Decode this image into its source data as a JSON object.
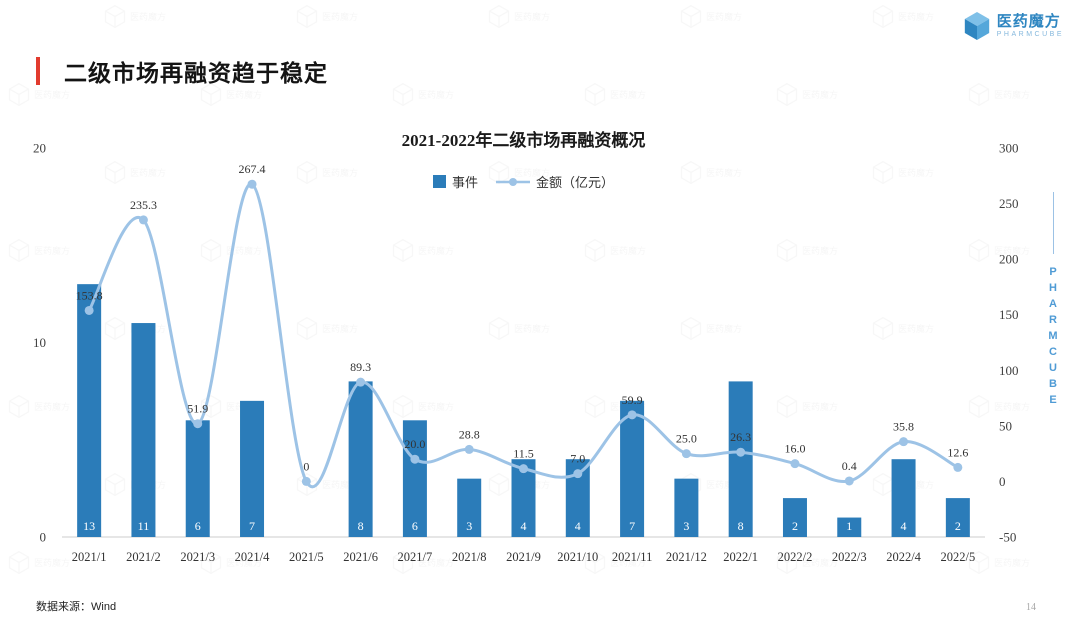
{
  "page": {
    "title": "二级市场再融资趋于稳定",
    "source_note": "数据来源：Wind",
    "page_number": "14",
    "side_label": "PHARMCUBE"
  },
  "logo": {
    "name": "医药魔方",
    "subtitle": "PHARMCUBE"
  },
  "chart_data": {
    "type": "combo (bar + smooth line, dual axis)",
    "title": "2021-2022年二级市场再融资概况",
    "categories": [
      "2021/1",
      "2021/2",
      "2021/3",
      "2021/4",
      "2021/5",
      "2021/6",
      "2021/7",
      "2021/8",
      "2021/9",
      "2021/10",
      "2021/11",
      "2021/12",
      "2022/1",
      "2022/2",
      "2022/3",
      "2022/4",
      "2022/5"
    ],
    "series": [
      {
        "name": "事件",
        "type": "bar",
        "axis": "left",
        "color": "#2b7cb9",
        "values": [
          13,
          11,
          6,
          7,
          0,
          8,
          6,
          3,
          4,
          4,
          7,
          3,
          8,
          2,
          1,
          4,
          2
        ]
      },
      {
        "name": "金额（亿元）",
        "type": "line",
        "axis": "right",
        "color": "#9dc3e6",
        "values": [
          153.8,
          235.3,
          51.9,
          267.4,
          0,
          89.3,
          20.0,
          28.8,
          11.5,
          7.0,
          59.9,
          25.0,
          26.3,
          16.0,
          0.4,
          35.8,
          12.6
        ],
        "labels": [
          "153.8",
          "235.3",
          "51.9",
          "267.4",
          "0",
          "89.3",
          "20.0",
          "28.8",
          "11.5",
          "7.0",
          "59.9",
          "25.0",
          "26.3",
          "16.0",
          "0.4",
          "35.8",
          "12.6"
        ]
      }
    ],
    "left_axis": {
      "min": 0,
      "max": 20,
      "ticks": [
        0,
        10,
        20
      ]
    },
    "right_axis": {
      "min": -50,
      "max": 300,
      "ticks": [
        300,
        250,
        200,
        150,
        100,
        50,
        0,
        -50
      ]
    },
    "legend_position": "top",
    "grid": false
  }
}
